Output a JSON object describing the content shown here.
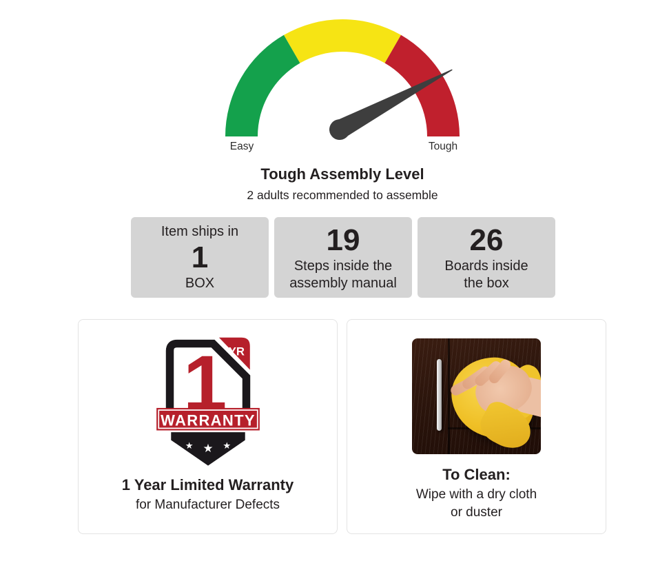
{
  "gauge": {
    "left_label": "Easy",
    "right_label": "Tough",
    "needle_angle_deg": -28,
    "needle_points_toward": "Tough",
    "segments": [
      "easy",
      "medium",
      "tough"
    ]
  },
  "assembly": {
    "title": "Tough Assembly Level",
    "subtitle": "2 adults recommended to assemble"
  },
  "stats": [
    {
      "line_top": "Item ships in",
      "number": "1",
      "line_bottom": "BOX"
    },
    {
      "number": "19",
      "line1": "Steps inside the",
      "line2": "assembly manual"
    },
    {
      "number": "26",
      "line1": "Boards inside",
      "line2": "the box"
    }
  ],
  "warranty": {
    "badge_number": "1",
    "badge_yr": "YR",
    "badge_banner": "WARRANTY",
    "star_glyph": "★",
    "title": "1 Year Limited Warranty",
    "subtitle": "for Manufacturer Defects"
  },
  "cleaning": {
    "title": "To Clean:",
    "line1": "Wipe with a dry cloth",
    "line2": "or duster"
  },
  "colors": {
    "gauge_green": "#14a14c",
    "gauge_yellow": "#f6e414",
    "gauge_red": "#c0202d",
    "needle": "#3e3e3e",
    "stat_box_bg": "#d4d4d4",
    "badge_red": "#b6202b",
    "badge_black": "#1b181c",
    "card_border": "#e3e3e3",
    "text": "#231f20"
  }
}
